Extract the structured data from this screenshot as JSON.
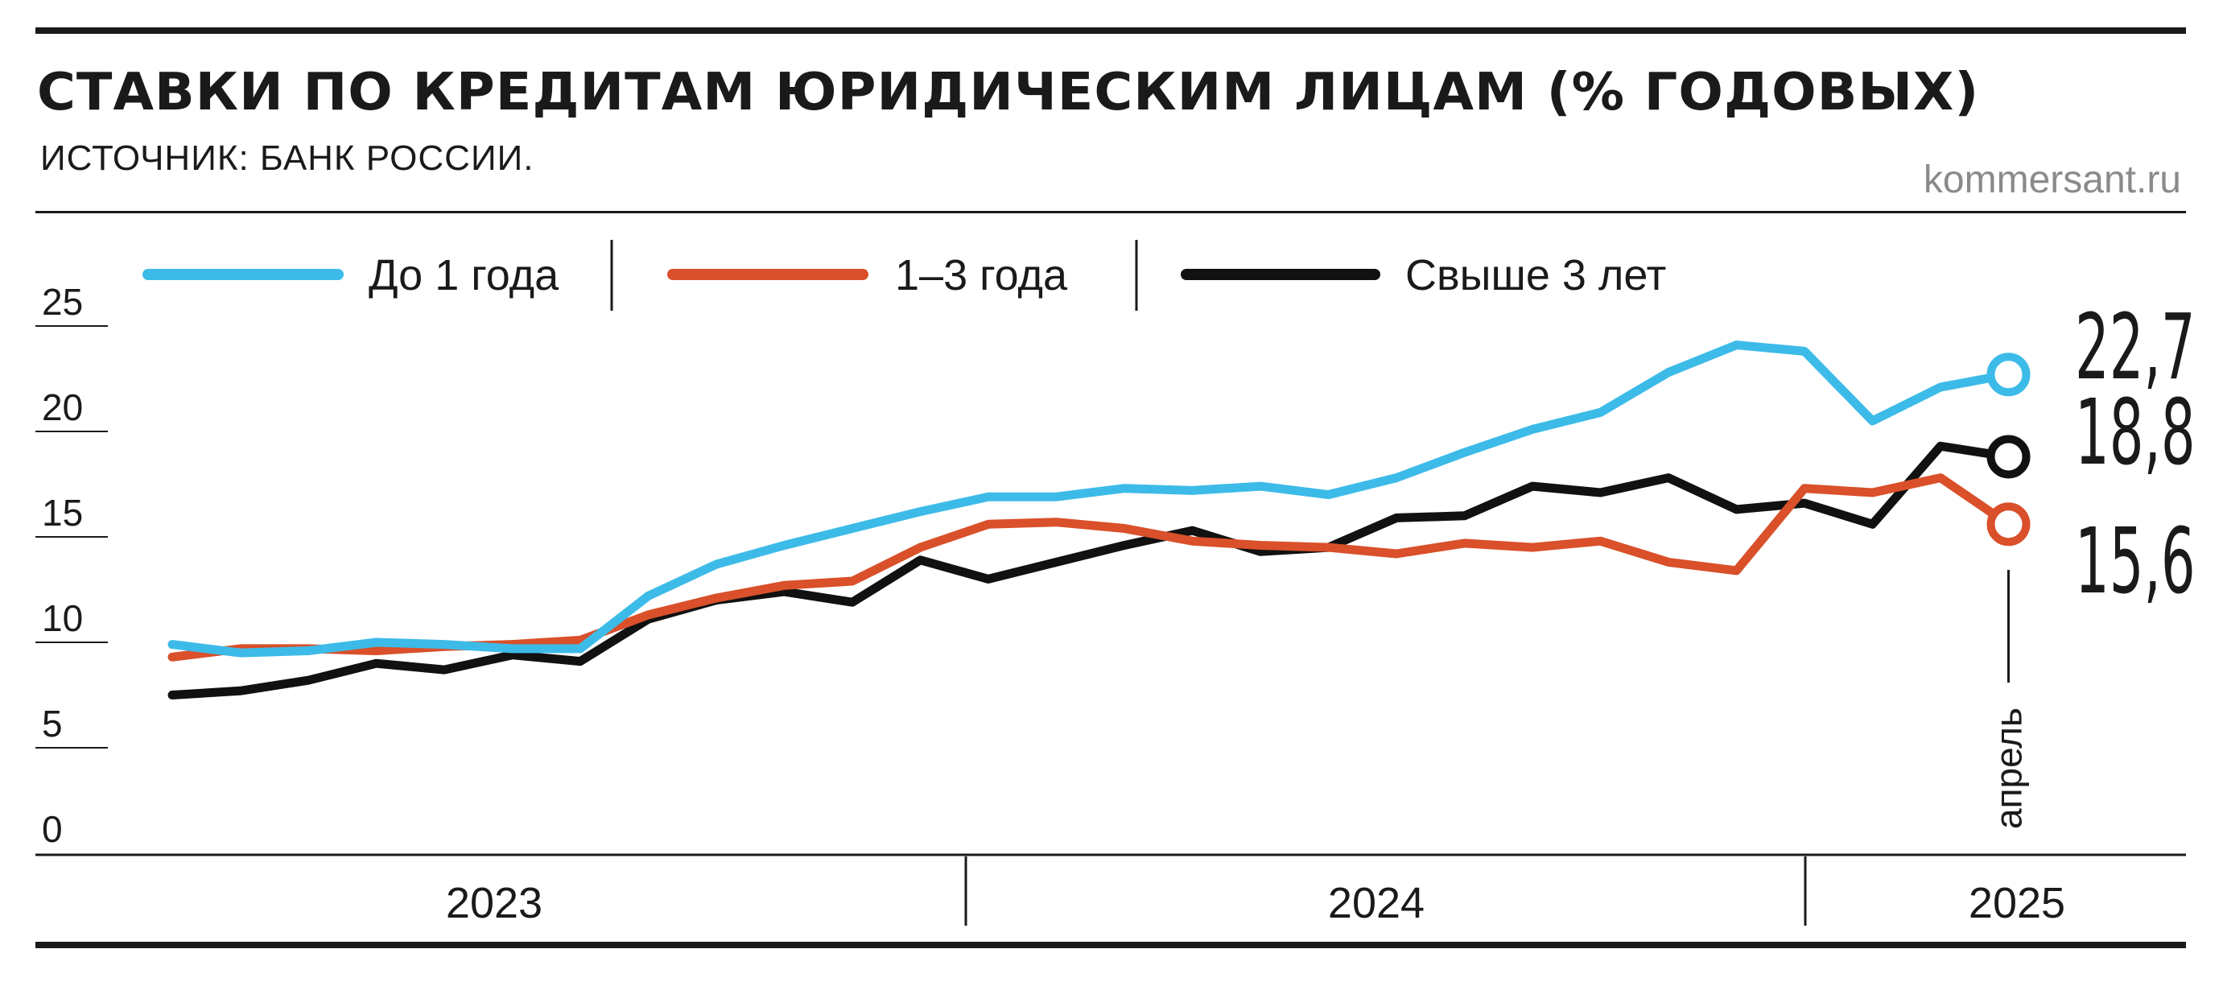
{
  "header": {
    "title": "СТАВКИ ПО КРЕДИТАМ ЮРИДИЧЕСКИМ ЛИЦАМ (% ГОДОВЫХ)",
    "source": "ИСТОЧНИК: БАНК РОССИИ.",
    "site": "kommersant.ru"
  },
  "colors": {
    "short": "#3dbbe8",
    "mid": "#d9502a",
    "long": "#111111",
    "text": "#1a1a1a",
    "muted": "#8a8a8a"
  },
  "chart_data": {
    "type": "line",
    "title": "СТАВКИ ПО КРЕДИТАМ ЮРИДИЧЕСКИМ ЛИЦАМ (% ГОДОВЫХ)",
    "x": [
      "2023-01",
      "2023-02",
      "2023-03",
      "2023-04",
      "2023-05",
      "2023-06",
      "2023-07",
      "2023-08",
      "2023-09",
      "2023-10",
      "2023-11",
      "2023-12",
      "2024-01",
      "2024-02",
      "2024-03",
      "2024-04",
      "2024-05",
      "2024-06",
      "2024-07",
      "2024-08",
      "2024-09",
      "2024-10",
      "2024-11",
      "2024-12",
      "2025-01",
      "2025-02",
      "2025-03",
      "2025-04"
    ],
    "year_labels": [
      "2023",
      "2024",
      "2025"
    ],
    "yticks": [
      0,
      5,
      10,
      15,
      20,
      25
    ],
    "ylim": [
      0,
      27
    ],
    "grid": false,
    "legend": "top",
    "series": [
      {
        "name": "До 1 года",
        "color_key": "short",
        "values": [
          9.9,
          9.5,
          9.6,
          10.0,
          9.9,
          9.7,
          9.7,
          12.2,
          13.7,
          14.6,
          15.4,
          16.2,
          16.9,
          16.9,
          17.3,
          17.2,
          17.4,
          17.0,
          17.8,
          19.0,
          20.1,
          20.9,
          22.8,
          24.1,
          23.8,
          20.5,
          22.1,
          22.7
        ],
        "end_label": "22,7"
      },
      {
        "name": "1–3 года",
        "color_key": "mid",
        "values": [
          9.3,
          9.7,
          9.7,
          9.6,
          9.8,
          9.9,
          10.1,
          11.3,
          12.1,
          12.7,
          12.9,
          14.5,
          15.6,
          15.7,
          15.4,
          14.8,
          14.6,
          14.5,
          14.2,
          14.7,
          14.5,
          14.8,
          13.8,
          13.4,
          17.3,
          17.1,
          17.8,
          15.6
        ],
        "end_label": "15,6"
      },
      {
        "name": "Свыше 3 лет",
        "color_key": "long",
        "values": [
          7.5,
          7.7,
          8.2,
          9.0,
          8.7,
          9.4,
          9.1,
          11.1,
          12.0,
          12.4,
          11.9,
          13.9,
          13.0,
          13.8,
          14.6,
          15.3,
          14.3,
          14.5,
          15.9,
          16.0,
          17.4,
          17.1,
          17.8,
          16.3,
          16.6,
          15.6,
          19.3,
          18.8
        ],
        "end_label": "18,8"
      }
    ],
    "end_marker_label": "апрель"
  }
}
